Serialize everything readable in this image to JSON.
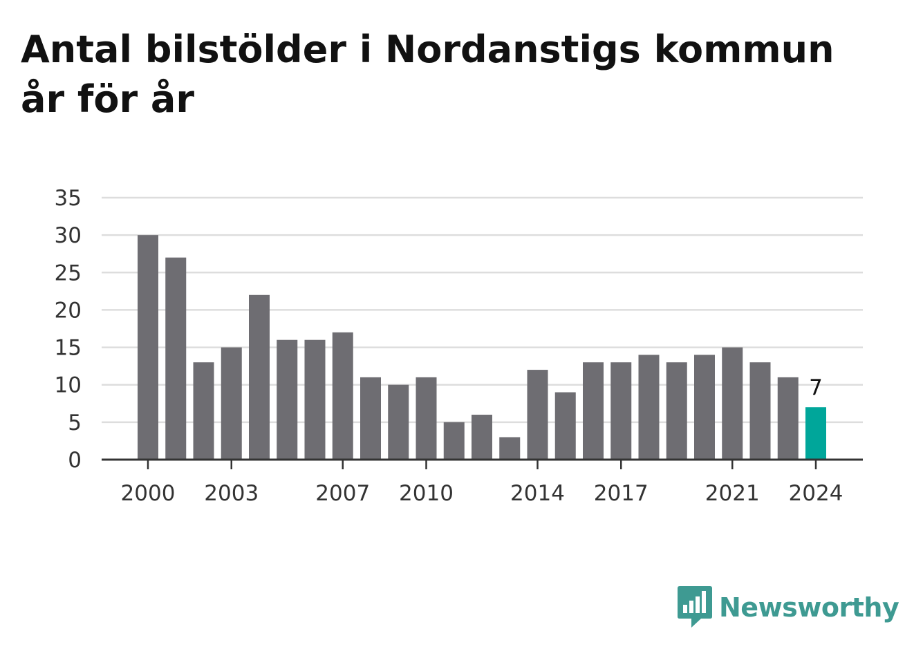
{
  "title_lines": [
    "Antal bilstölder i Nordanstigs kommun",
    "år för år"
  ],
  "brand": {
    "name": "Newsworthy",
    "icon": "newsworthy-logo-icon"
  },
  "colors": {
    "bar": "#6e6d72",
    "highlight": "#00a69a",
    "grid": "#dddddd",
    "axis": "#333333",
    "brand": "#3e9a92"
  },
  "chart_data": {
    "type": "bar",
    "categories": [
      "2000",
      "2001",
      "2002",
      "2003",
      "2004",
      "2005",
      "2006",
      "2007",
      "2008",
      "2009",
      "2010",
      "2011",
      "2012",
      "2013",
      "2014",
      "2015",
      "2016",
      "2017",
      "2018",
      "2019",
      "2020",
      "2021",
      "2022",
      "2023",
      "2024"
    ],
    "values": [
      30,
      27,
      13,
      15,
      22,
      16,
      16,
      17,
      11,
      10,
      11,
      5,
      6,
      3,
      12,
      9,
      13,
      13,
      14,
      13,
      14,
      15,
      13,
      11,
      7
    ],
    "x_tick_labels": [
      "2000",
      "2003",
      "2007",
      "2010",
      "2014",
      "2017",
      "2021",
      "2024"
    ],
    "y_ticks": [
      0,
      5,
      10,
      15,
      20,
      25,
      30,
      35
    ],
    "ylim": [
      0,
      35
    ],
    "grid": true,
    "highlight": {
      "category": "2024",
      "label": "7"
    }
  }
}
